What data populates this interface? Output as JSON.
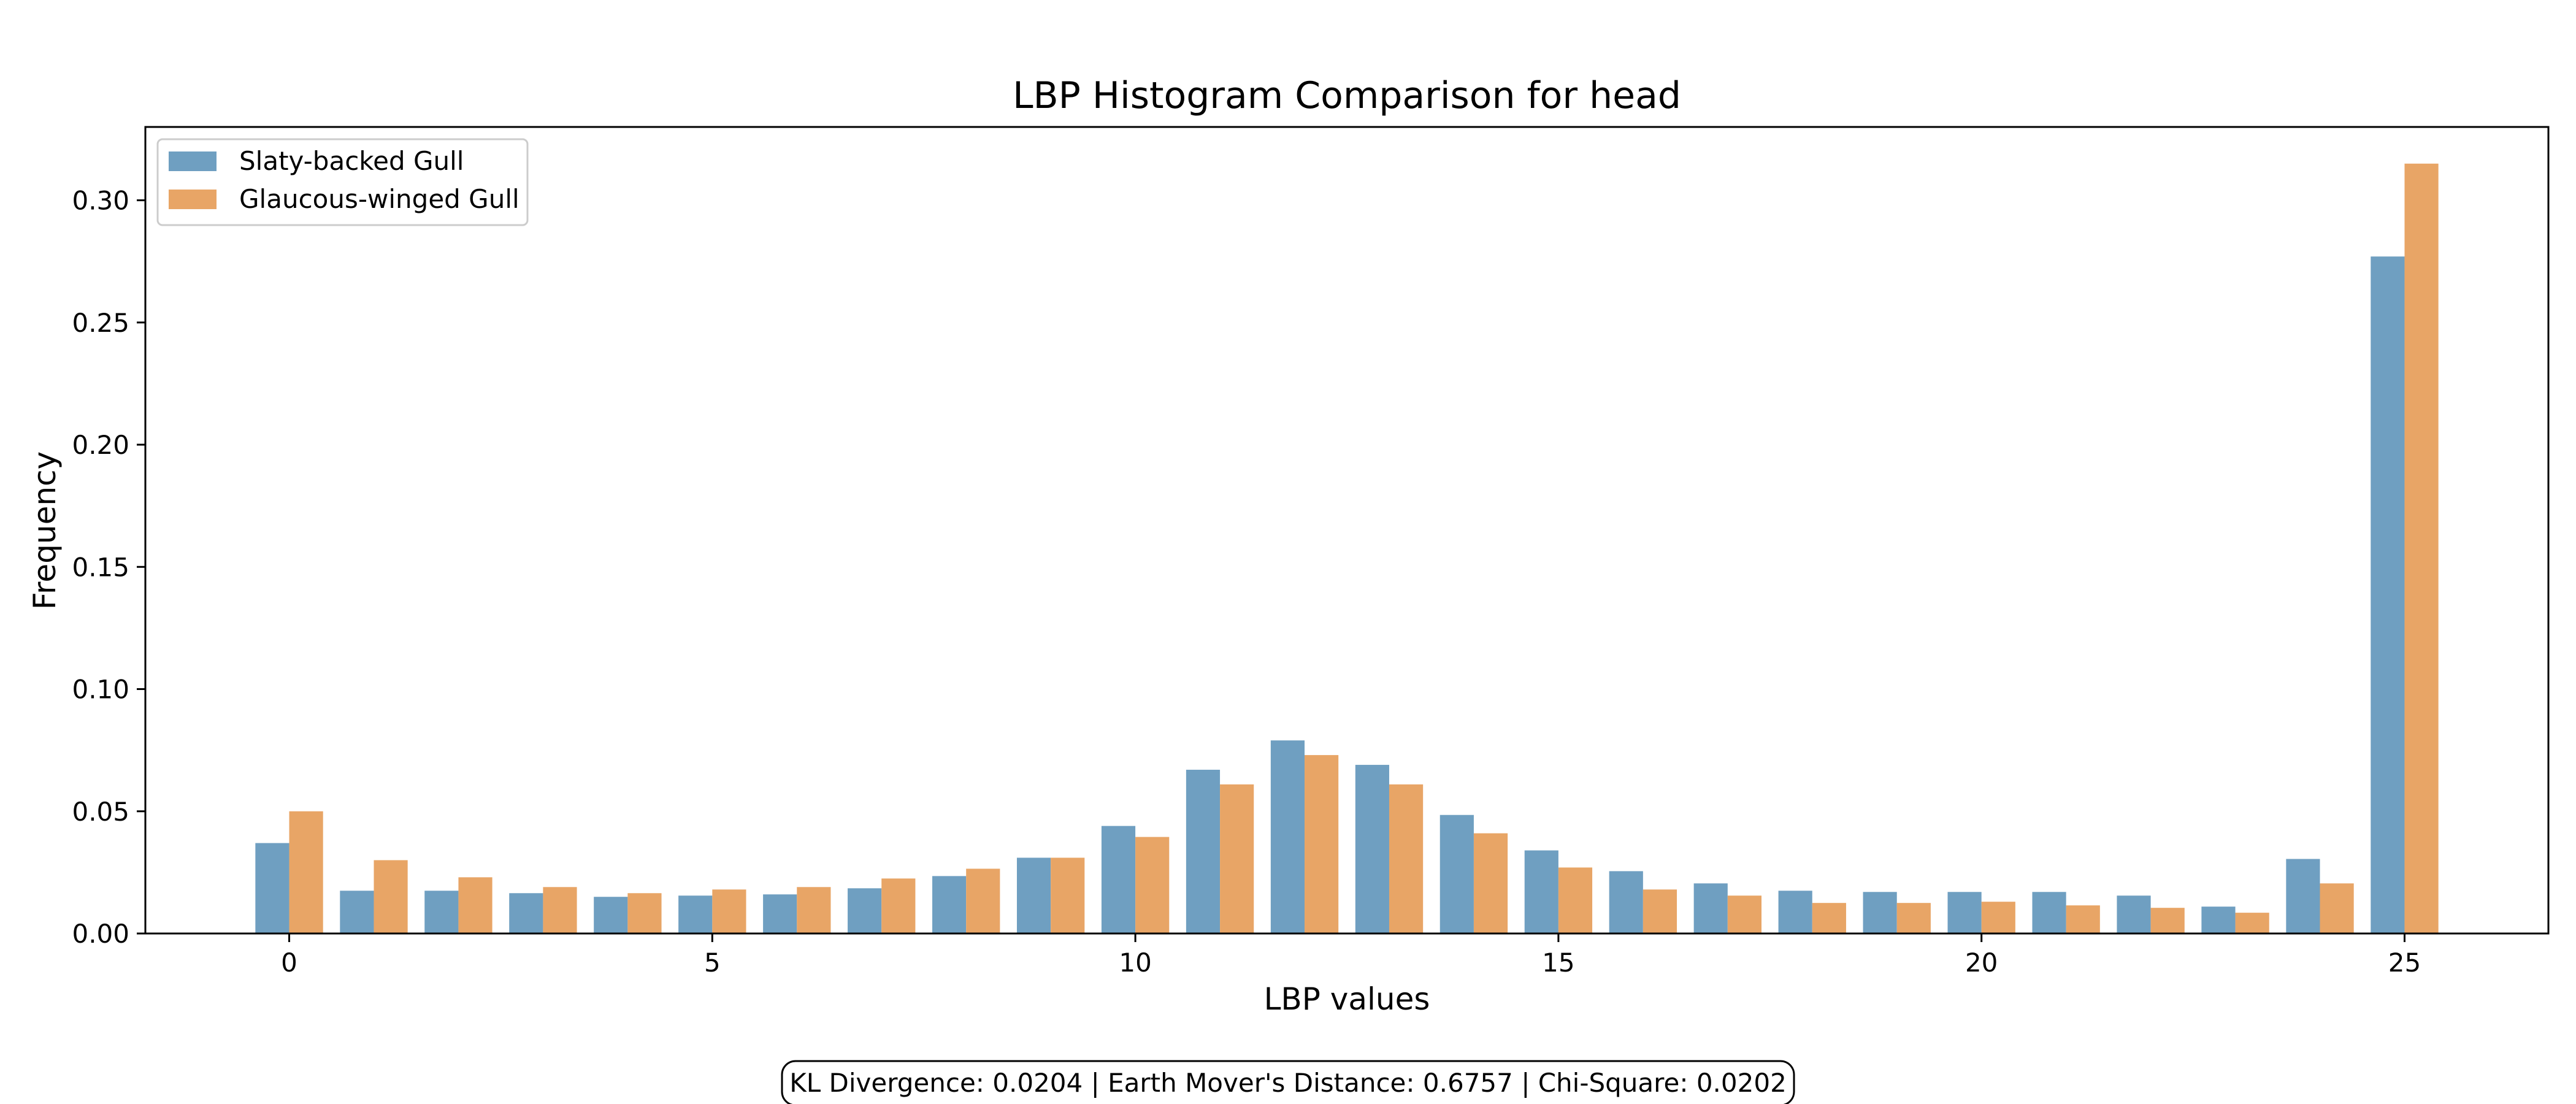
{
  "chart_data": {
    "type": "bar",
    "title": "LBP Histogram Comparison for head",
    "xlabel": "LBP values",
    "ylabel": "Frequency",
    "x": [
      0,
      1,
      2,
      3,
      4,
      5,
      6,
      7,
      8,
      9,
      10,
      11,
      12,
      13,
      14,
      15,
      16,
      17,
      18,
      19,
      20,
      21,
      22,
      23,
      24,
      25
    ],
    "xlim": [
      -1.7,
      26.7
    ],
    "ylim": [
      0,
      0.33
    ],
    "xticks": [
      0,
      5,
      10,
      15,
      20,
      25
    ],
    "yticks": [
      0.0,
      0.05,
      0.1,
      0.15,
      0.2,
      0.25,
      0.3
    ],
    "xtick_labels": [
      "0",
      "5",
      "10",
      "15",
      "20",
      "25"
    ],
    "ytick_labels": [
      "0.00",
      "0.05",
      "0.10",
      "0.15",
      "0.20",
      "0.25",
      "0.30"
    ],
    "grid": false,
    "legend_position": "top-left",
    "series": [
      {
        "name": "Slaty-backed Gull",
        "color": "#6f9fc1",
        "values": [
          0.037,
          0.0175,
          0.0175,
          0.0165,
          0.015,
          0.0155,
          0.016,
          0.0185,
          0.0235,
          0.031,
          0.044,
          0.067,
          0.079,
          0.069,
          0.0485,
          0.034,
          0.0255,
          0.0205,
          0.0175,
          0.017,
          0.017,
          0.017,
          0.0155,
          0.011,
          0.0305,
          0.277
        ]
      },
      {
        "name": "Glaucous-winged Gull",
        "color": "#e8a566",
        "values": [
          0.05,
          0.03,
          0.023,
          0.019,
          0.0165,
          0.018,
          0.019,
          0.0225,
          0.0265,
          0.031,
          0.0395,
          0.061,
          0.073,
          0.061,
          0.041,
          0.027,
          0.018,
          0.0155,
          0.0125,
          0.0125,
          0.013,
          0.0115,
          0.0105,
          0.0085,
          0.0205,
          0.315
        ]
      }
    ],
    "annotation": "KL Divergence: 0.0204 | Earth Mover's Distance: 0.6757 | Chi-Square: 0.0202"
  }
}
